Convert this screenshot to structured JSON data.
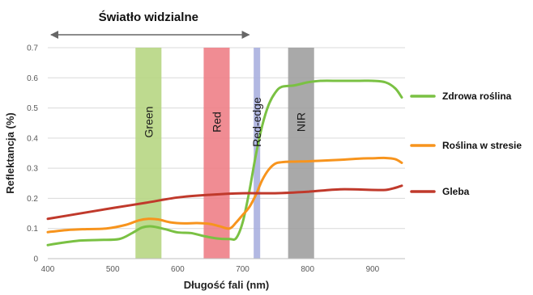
{
  "chart_data": {
    "type": "line",
    "header": "Światło widzialne",
    "xlabel": "Długość fali (nm)",
    "ylabel": "Reflektancja (%)",
    "xlim": [
      400,
      950
    ],
    "ylim": [
      0,
      0.7
    ],
    "xticks": [
      "400",
      "500",
      "600",
      "700",
      "800",
      "900"
    ],
    "yticks": [
      "0",
      "0.1",
      "0.2",
      "0.3",
      "0.4",
      "0.5",
      "0.6",
      "0.7"
    ],
    "visible_range": [
      400,
      710
    ],
    "grid": true,
    "legend_position": "right",
    "bands": [
      {
        "label": "Green",
        "from": 535,
        "to": 575,
        "color": "#b5d57f"
      },
      {
        "label": "Red",
        "from": 640,
        "to": 680,
        "color": "#ee7c84"
      },
      {
        "label": "Red-edge",
        "from": 717,
        "to": 727,
        "color": "#a7aede"
      },
      {
        "label": "NIR",
        "from": 770,
        "to": 810,
        "color": "#9d9d9d"
      }
    ],
    "series": [
      {
        "name": "Zdrowa roślina",
        "color": "#7ac143",
        "x": [
          400,
          420,
          450,
          480,
          510,
          530,
          545,
          560,
          580,
          600,
          620,
          640,
          660,
          680,
          690,
          700,
          710,
          720,
          730,
          740,
          750,
          760,
          780,
          800,
          820,
          850,
          880,
          900,
          920,
          935,
          945
        ],
        "y": [
          0.045,
          0.052,
          0.06,
          0.062,
          0.065,
          0.085,
          0.103,
          0.107,
          0.098,
          0.087,
          0.085,
          0.075,
          0.067,
          0.065,
          0.068,
          0.12,
          0.22,
          0.34,
          0.44,
          0.51,
          0.55,
          0.57,
          0.575,
          0.585,
          0.59,
          0.59,
          0.59,
          0.59,
          0.585,
          0.565,
          0.535
        ]
      },
      {
        "name": "Roślina w stresie",
        "color": "#f7941d",
        "x": [
          400,
          430,
          460,
          490,
          520,
          540,
          555,
          570,
          590,
          610,
          630,
          650,
          665,
          680,
          690,
          700,
          710,
          720,
          730,
          740,
          750,
          760,
          780,
          800,
          820,
          850,
          880,
          900,
          920,
          935,
          945
        ],
        "y": [
          0.088,
          0.095,
          0.098,
          0.1,
          0.112,
          0.127,
          0.132,
          0.13,
          0.12,
          0.117,
          0.118,
          0.115,
          0.107,
          0.1,
          0.12,
          0.145,
          0.17,
          0.21,
          0.26,
          0.295,
          0.315,
          0.32,
          0.322,
          0.323,
          0.325,
          0.328,
          0.332,
          0.333,
          0.334,
          0.33,
          0.318
        ]
      },
      {
        "name": "Gleba",
        "color": "#c0392b",
        "x": [
          400,
          450,
          500,
          550,
          600,
          650,
          700,
          750,
          800,
          850,
          900,
          920,
          935,
          945
        ],
        "y": [
          0.132,
          0.15,
          0.168,
          0.185,
          0.203,
          0.212,
          0.217,
          0.217,
          0.222,
          0.23,
          0.228,
          0.228,
          0.235,
          0.242
        ]
      }
    ]
  }
}
